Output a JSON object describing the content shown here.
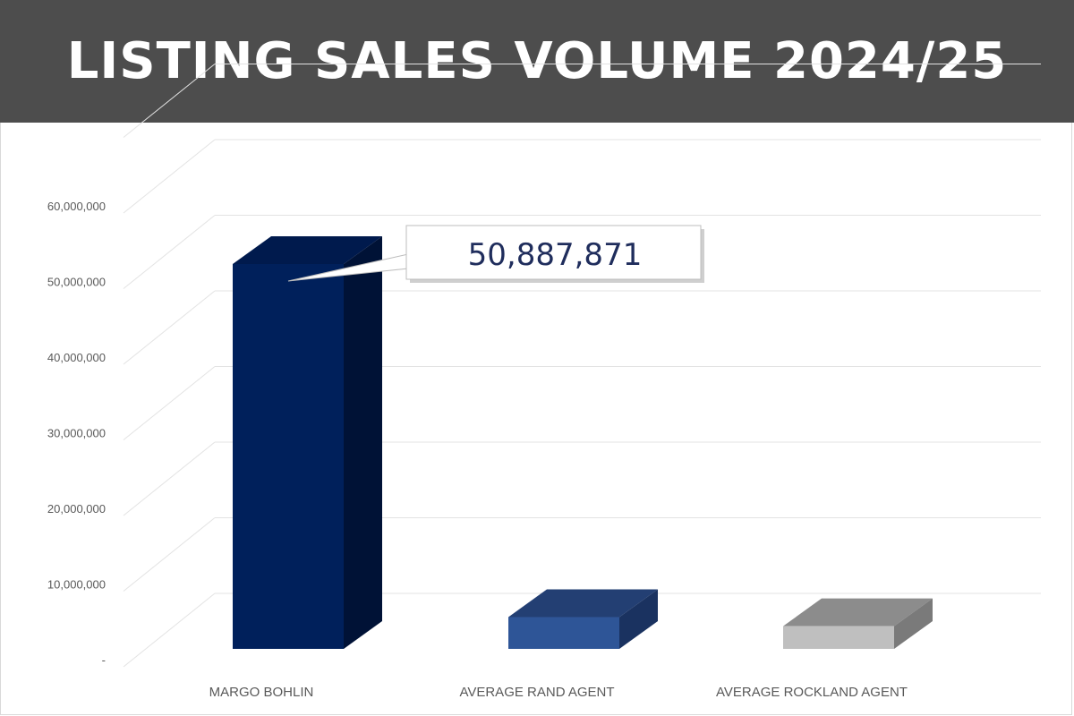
{
  "header": {
    "title": "LISTING SALES VOLUME 2024/25"
  },
  "chart_data": {
    "type": "bar",
    "title": "LISTING SALES VOLUME 2024/25",
    "categories": [
      "MARGO BOHLIN",
      "AVERAGE RAND AGENT",
      "AVERAGE ROCKLAND AGENT"
    ],
    "values": [
      50887871,
      4200000,
      3000000
    ],
    "ylim": [
      0,
      70000000
    ],
    "yticks": [
      0,
      10000000,
      20000000,
      30000000,
      40000000,
      50000000,
      60000000
    ],
    "ytick_labels": [
      "-",
      "10,000,000",
      "20,000,000",
      "30,000,000",
      "40,000,000",
      "50,000,000",
      "60,000,000"
    ],
    "grid": true,
    "data_label": {
      "category": "MARGO BOHLIN",
      "text": "50,887,871"
    },
    "colors": {
      "front": [
        "#00205b",
        "#2e5597",
        "#bfbfbf"
      ],
      "top": [
        "#001a4d",
        "#233f73",
        "#8c8c8c"
      ],
      "side": [
        "#001236",
        "#1a3260",
        "#7a7a7a"
      ]
    }
  }
}
